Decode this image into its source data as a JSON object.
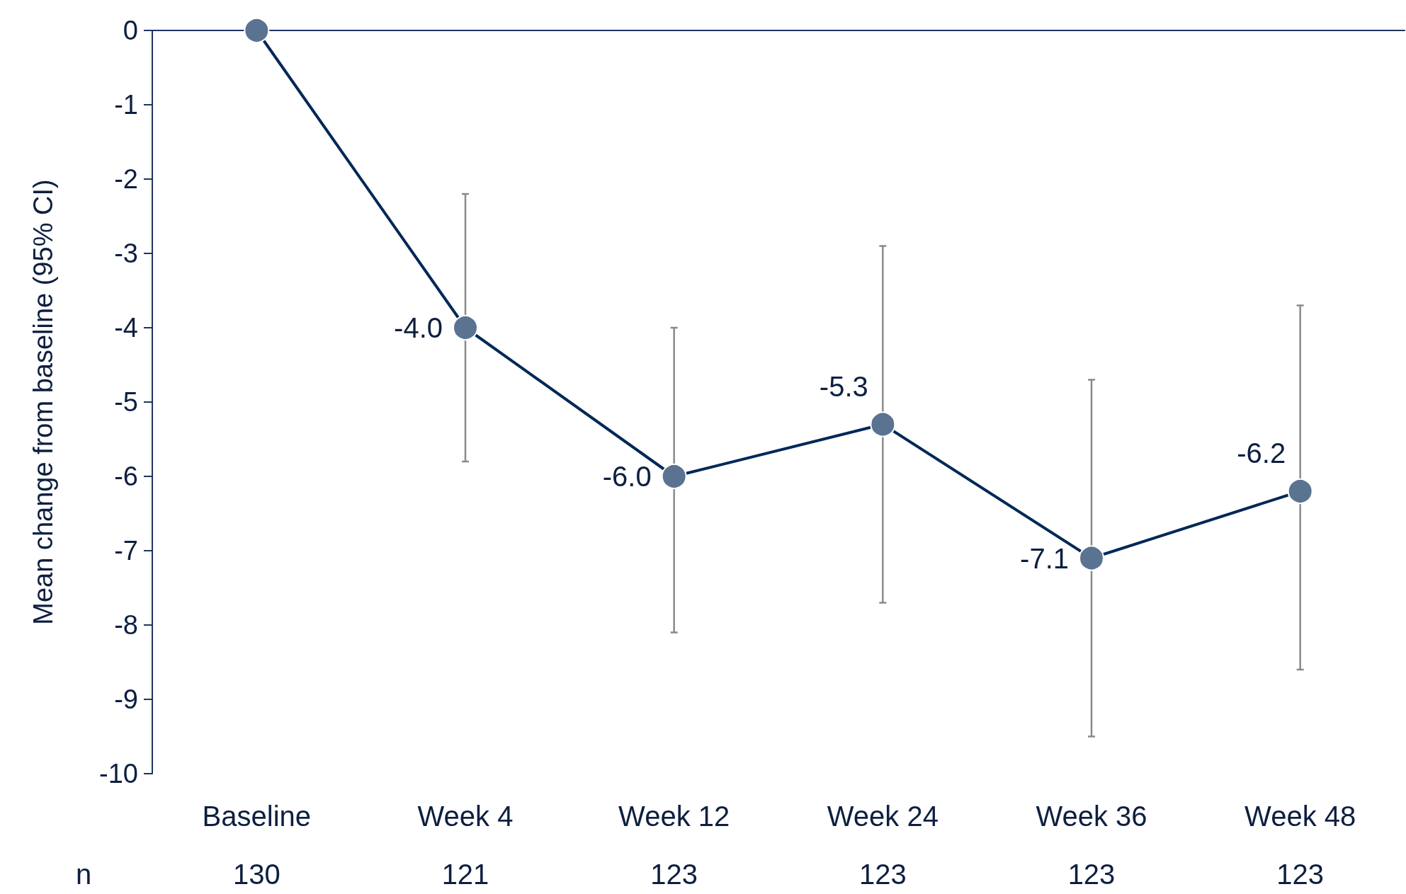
{
  "chart_data": {
    "type": "line",
    "ylabel": "Mean change from baseline (95% CI)",
    "categories": [
      "Baseline",
      "Week 4",
      "Week 12",
      "Week 24",
      "Week 36",
      "Week 48"
    ],
    "series": [
      {
        "color": "#002857",
        "values": [
          0,
          -4.0,
          -6.0,
          -5.3,
          -7.1,
          -6.2
        ],
        "errors": [
          null,
          [
            -5.8,
            -2.2
          ],
          [
            -8.1,
            -4.0
          ],
          [
            -7.7,
            -2.9
          ],
          [
            -9.5,
            -4.7
          ],
          [
            -8.6,
            -3.7
          ]
        ],
        "value_labels": [
          null,
          "-4.0",
          "-6.0",
          "-5.3",
          "-7.1",
          "-6.2"
        ]
      }
    ],
    "ylim": [
      -10,
      0
    ],
    "yticks": [
      -10,
      -9,
      -8,
      -7,
      -6,
      -5,
      -4,
      -3,
      -2,
      -1,
      0
    ],
    "grid": false,
    "marker": "circle",
    "line_style": "solid",
    "annotations": [
      "n",
      "130",
      "121",
      "123",
      "123",
      "123",
      "123"
    ]
  }
}
